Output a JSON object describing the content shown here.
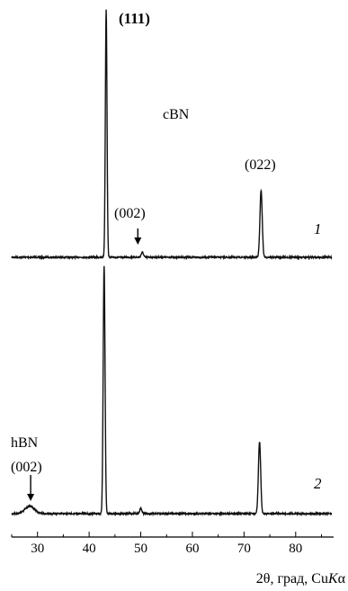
{
  "chart_data": {
    "type": "line",
    "xlabel": "2θ, град, Cu",
    "xlabel_italic": "K",
    "xlabel_suffix": "α",
    "xlim": [
      25,
      87
    ],
    "x_ticks": [
      30,
      40,
      50,
      60,
      70,
      80
    ],
    "grid": false,
    "panels": [
      {
        "id": "1",
        "number": "1",
        "phase_label": "cBN",
        "peaks": [
          {
            "label": "(111)",
            "x": 43.3,
            "rel_intensity": 1.0
          },
          {
            "label": "(002)",
            "x": 50.3,
            "rel_intensity": 0.02,
            "arrow": true
          },
          {
            "label": "(022)",
            "x": 73.3,
            "rel_intensity": 0.27
          }
        ]
      },
      {
        "id": "2",
        "number": "2",
        "phase_label": "hBN",
        "peaks": [
          {
            "label": "(002)",
            "x": 28.5,
            "rel_intensity": 0.03,
            "arrow": true
          },
          {
            "label": "",
            "x": 42.9,
            "rel_intensity": 1.0
          },
          {
            "label": "",
            "x": 50.0,
            "rel_intensity": 0.02
          },
          {
            "label": "",
            "x": 73.0,
            "rel_intensity": 0.29
          }
        ]
      }
    ]
  }
}
